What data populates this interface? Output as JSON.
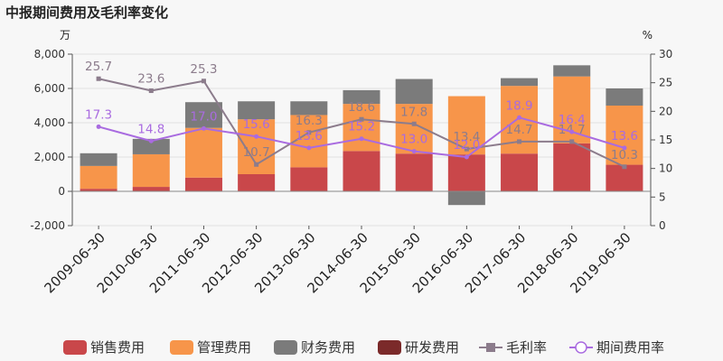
{
  "title": "中报期间费用及毛利率变化",
  "chart_data": {
    "type": "bar",
    "stacked": true,
    "categories": [
      "2009-06-30",
      "2010-06-30",
      "2011-06-30",
      "2012-06-30",
      "2013-06-30",
      "2014-06-30",
      "2015-06-30",
      "2016-06-30",
      "2017-06-30",
      "2018-06-30",
      "2019-06-30"
    ],
    "left_axis": {
      "unit": "万",
      "ylim": [
        -2000,
        8000
      ],
      "ticks": [
        -2000,
        0,
        2000,
        4000,
        6000,
        8000
      ]
    },
    "right_axis": {
      "unit": "%",
      "ylim": [
        0,
        30
      ],
      "ticks": [
        0,
        5,
        10,
        15,
        20,
        25,
        30
      ]
    },
    "bar_series": [
      {
        "name": "销售费用",
        "color": "#c9474a",
        "values": [
          150,
          260,
          800,
          1000,
          1400,
          2350,
          2200,
          2150,
          2200,
          2800,
          1550
        ]
      },
      {
        "name": "管理费用",
        "color": "#f7954a",
        "values": [
          1330,
          1900,
          2900,
          3200,
          3050,
          2750,
          2900,
          3400,
          3950,
          3900,
          3450
        ]
      },
      {
        "name": "财务费用",
        "color": "#7b7b7b",
        "values": [
          740,
          900,
          1500,
          1050,
          800,
          800,
          1450,
          -800,
          450,
          650,
          1000
        ]
      },
      {
        "name": "研发费用",
        "color": "#7b2a2a",
        "values": [
          0,
          0,
          0,
          0,
          0,
          0,
          0,
          0,
          0,
          0,
          0
        ]
      }
    ],
    "line_series": [
      {
        "name": "毛利率",
        "color": "#8c7c8c",
        "marker": "square",
        "values": [
          25.7,
          23.6,
          25.3,
          10.7,
          16.3,
          18.6,
          17.8,
          13.4,
          14.7,
          14.7,
          10.3
        ]
      },
      {
        "name": "期间费用率",
        "color": "#a96be0",
        "marker": "circle",
        "values": [
          17.3,
          14.8,
          17.0,
          15.6,
          13.6,
          15.2,
          13.0,
          12.0,
          18.9,
          16.4,
          13.6
        ]
      }
    ],
    "legend_position": "bottom"
  }
}
